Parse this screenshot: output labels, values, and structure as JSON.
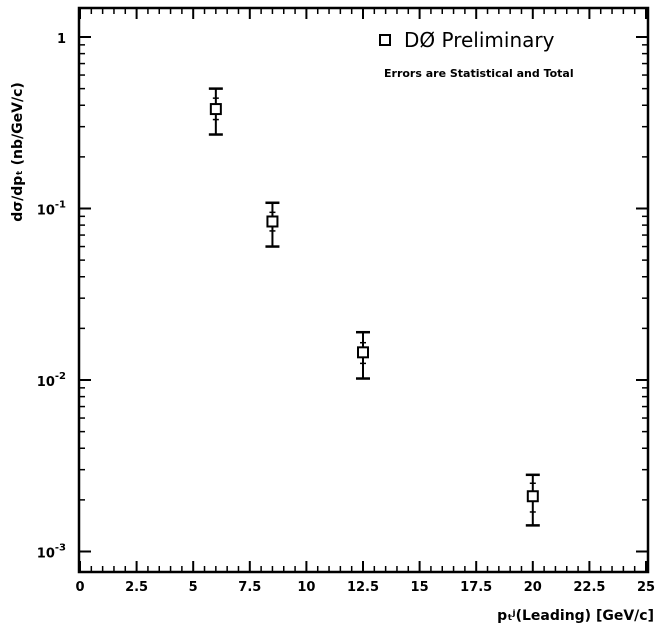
{
  "chart_data": {
    "type": "scatter",
    "xlabel": "pₜʲ(Leading) [GeV/c]",
    "ylabel": "dσ/dpₜ (nb/GeV/c)",
    "xlim": [
      0,
      25
    ],
    "ylim": [
      0.0007,
      1.5
    ],
    "yscale": "log",
    "xticks": [
      0,
      2.5,
      5,
      7.5,
      10,
      12.5,
      15,
      17.5,
      20,
      22.5,
      25
    ],
    "xtick_labels": [
      "0",
      "2.5",
      "5",
      "7.5",
      "10",
      "12.5",
      "15",
      "17.5",
      "20",
      "22.5",
      "25"
    ],
    "yticks": [
      {
        "value": 1,
        "base": "1",
        "exp": ""
      },
      {
        "value": 0.1,
        "base": "10",
        "exp": "-1"
      },
      {
        "value": 0.01,
        "base": "10",
        "exp": "-2"
      },
      {
        "value": 0.001,
        "base": "10",
        "exp": "-3"
      }
    ],
    "series": [
      {
        "name": "DØ Preliminary",
        "marker": "open-square",
        "points": [
          {
            "x": 6,
            "y": 0.38,
            "stat_low": 0.33,
            "stat_high": 0.44,
            "tot_low": 0.27,
            "tot_high": 0.5
          },
          {
            "x": 8.5,
            "y": 0.084,
            "stat_low": 0.074,
            "stat_high": 0.095,
            "tot_low": 0.06,
            "tot_high": 0.108
          },
          {
            "x": 12.5,
            "y": 0.0145,
            "stat_low": 0.0125,
            "stat_high": 0.0165,
            "tot_low": 0.0102,
            "tot_high": 0.019
          },
          {
            "x": 20,
            "y": 0.0021,
            "stat_low": 0.0017,
            "stat_high": 0.0025,
            "tot_low": 0.00142,
            "tot_high": 0.0028
          }
        ]
      }
    ],
    "legend": {
      "entry": "DØ Preliminary",
      "position": "top-right"
    },
    "annotation": "Errors are Statistical and Total",
    "grid": false
  }
}
